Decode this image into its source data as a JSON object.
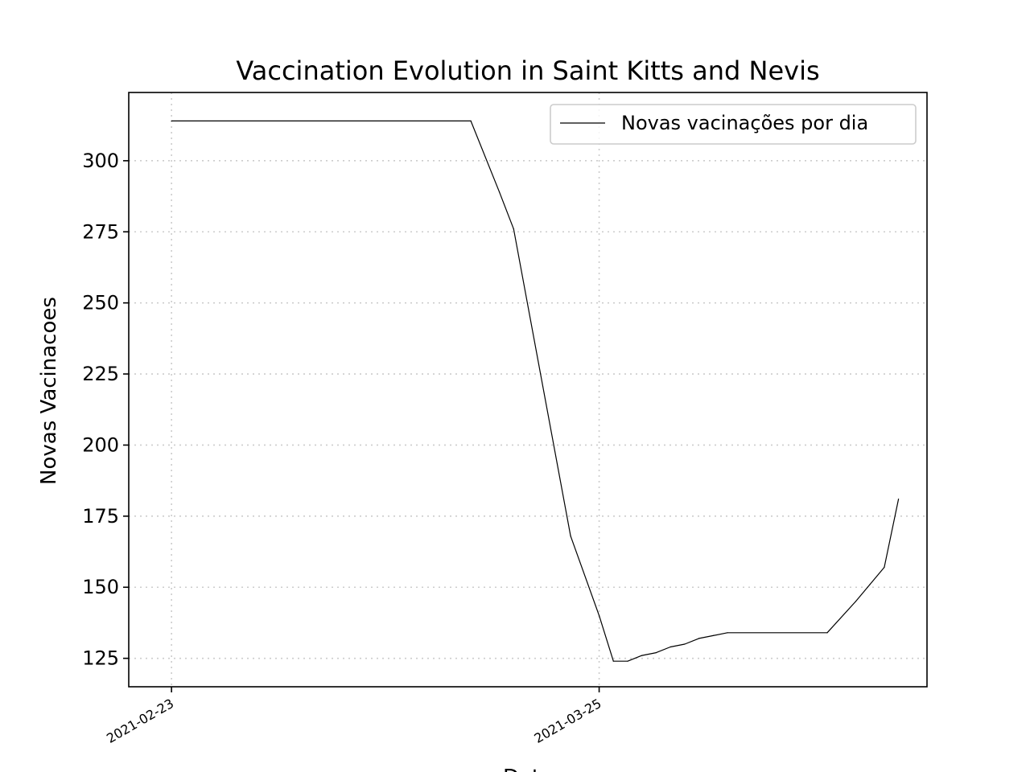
{
  "chart_data": {
    "type": "line",
    "title": "Vaccination Evolution in Saint Kitts and Nevis",
    "xlabel": "Data",
    "ylabel": "Novas Vacinacoes",
    "x_ticks": [
      "2021-02-23",
      "2021-03-25"
    ],
    "y_ticks": [
      125,
      150,
      175,
      200,
      225,
      250,
      275,
      300
    ],
    "xlim": [
      "2021-02-20",
      "2021-04-17"
    ],
    "ylim": [
      115,
      324
    ],
    "grid": true,
    "legend_position": "top-right",
    "series": [
      {
        "name": "Novas vacinações por dia",
        "color": "#000000",
        "points": [
          {
            "x": "2021-02-23",
            "y": 314
          },
          {
            "x": "2021-03-16",
            "y": 314
          },
          {
            "x": "2021-03-18",
            "y": 289
          },
          {
            "x": "2021-03-19",
            "y": 276
          },
          {
            "x": "2021-03-23",
            "y": 168
          },
          {
            "x": "2021-03-25",
            "y": 140
          },
          {
            "x": "2021-03-26",
            "y": 124
          },
          {
            "x": "2021-03-27",
            "y": 124
          },
          {
            "x": "2021-03-28",
            "y": 126
          },
          {
            "x": "2021-03-29",
            "y": 127
          },
          {
            "x": "2021-03-30",
            "y": 129
          },
          {
            "x": "2021-03-31",
            "y": 130
          },
          {
            "x": "2021-04-01",
            "y": 132
          },
          {
            "x": "2021-04-02",
            "y": 133
          },
          {
            "x": "2021-04-03",
            "y": 134
          },
          {
            "x": "2021-04-10",
            "y": 134
          },
          {
            "x": "2021-04-12",
            "y": 145
          },
          {
            "x": "2021-04-13",
            "y": 151
          },
          {
            "x": "2021-04-14",
            "y": 157
          },
          {
            "x": "2021-04-15",
            "y": 181
          }
        ]
      }
    ]
  }
}
